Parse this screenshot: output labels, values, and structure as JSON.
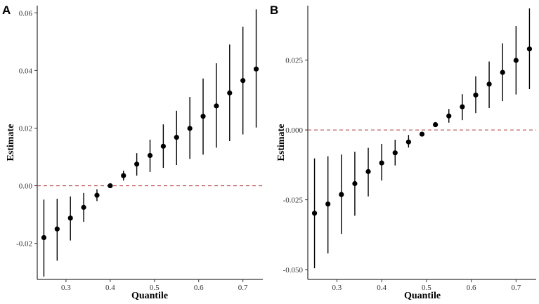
{
  "chart_data": [
    {
      "panel": "A",
      "type": "scatter",
      "xlabel": "Quantile",
      "ylabel": "Estimate",
      "xlim": [
        0.235,
        0.745
      ],
      "ylim": [
        -0.0325,
        0.0625
      ],
      "xticks": [
        0.3,
        0.4,
        0.5,
        0.6,
        0.7
      ],
      "xtick_labels": [
        "0.3",
        "0.4",
        "0.5",
        "0.6",
        "0.7"
      ],
      "yticks": [
        -0.02,
        0.0,
        0.02,
        0.04,
        0.06
      ],
      "ytick_labels": [
        "-0.02",
        "0.00",
        "0.02",
        "0.04",
        "0.06"
      ],
      "reference_line": 0.0,
      "grid": false,
      "x": [
        0.25,
        0.28,
        0.31,
        0.34,
        0.37,
        0.4,
        0.43,
        0.46,
        0.49,
        0.52,
        0.55,
        0.58,
        0.61,
        0.64,
        0.67,
        0.7,
        0.73
      ],
      "y": [
        -0.018,
        -0.015,
        -0.0112,
        -0.0075,
        -0.0033,
        0.0,
        0.0035,
        0.0075,
        0.0105,
        0.0137,
        0.0168,
        0.0199,
        0.0241,
        0.0277,
        0.0322,
        0.0365,
        0.0405
      ],
      "lower": [
        -0.0315,
        -0.026,
        -0.019,
        -0.0125,
        -0.0053,
        0.0,
        0.0018,
        0.0035,
        0.0048,
        0.0062,
        0.0072,
        0.0093,
        0.0108,
        0.0132,
        0.0155,
        0.0178,
        0.0202
      ],
      "upper": [
        -0.0048,
        -0.0045,
        -0.0037,
        -0.0025,
        -0.0012,
        0.0,
        0.0052,
        0.0113,
        0.016,
        0.0213,
        0.026,
        0.0308,
        0.0372,
        0.0425,
        0.049,
        0.0552,
        0.0612
      ]
    },
    {
      "panel": "B",
      "type": "scatter",
      "xlabel": "Quantile",
      "ylabel": "Estimate",
      "xlim": [
        0.235,
        0.745
      ],
      "ylim": [
        -0.0535,
        0.0445
      ],
      "xticks": [
        0.3,
        0.4,
        0.5,
        0.6,
        0.7
      ],
      "xtick_labels": [
        "0.3",
        "0.4",
        "0.5",
        "0.6",
        "0.7"
      ],
      "yticks": [
        -0.05,
        -0.025,
        0.0,
        0.025
      ],
      "ytick_labels": [
        "-0.050",
        "-0.025",
        "0.000",
        "0.025"
      ],
      "reference_line": 0.0,
      "grid": false,
      "x": [
        0.25,
        0.28,
        0.31,
        0.34,
        0.37,
        0.4,
        0.43,
        0.46,
        0.49,
        0.52,
        0.55,
        0.58,
        0.61,
        0.64,
        0.67,
        0.7,
        0.73
      ],
      "y": [
        -0.0298,
        -0.0265,
        -0.0231,
        -0.0192,
        -0.0149,
        -0.0118,
        -0.0082,
        -0.0043,
        -0.0015,
        0.0019,
        0.005,
        0.0083,
        0.0125,
        0.0164,
        0.0206,
        0.0249,
        0.029
      ],
      "lower": [
        -0.0495,
        -0.0442,
        -0.0372,
        -0.0307,
        -0.0238,
        -0.0181,
        -0.0127,
        -0.0063,
        -0.0017,
        0.0012,
        0.0026,
        0.0035,
        0.006,
        0.0078,
        0.0103,
        0.0127,
        0.0146
      ],
      "upper": [
        -0.0102,
        -0.0094,
        -0.0088,
        -0.0078,
        -0.0064,
        -0.005,
        -0.0035,
        -0.0018,
        -0.0008,
        0.0025,
        0.0075,
        0.0128,
        0.0192,
        0.0245,
        0.031,
        0.0372,
        0.0435
      ]
    }
  ]
}
